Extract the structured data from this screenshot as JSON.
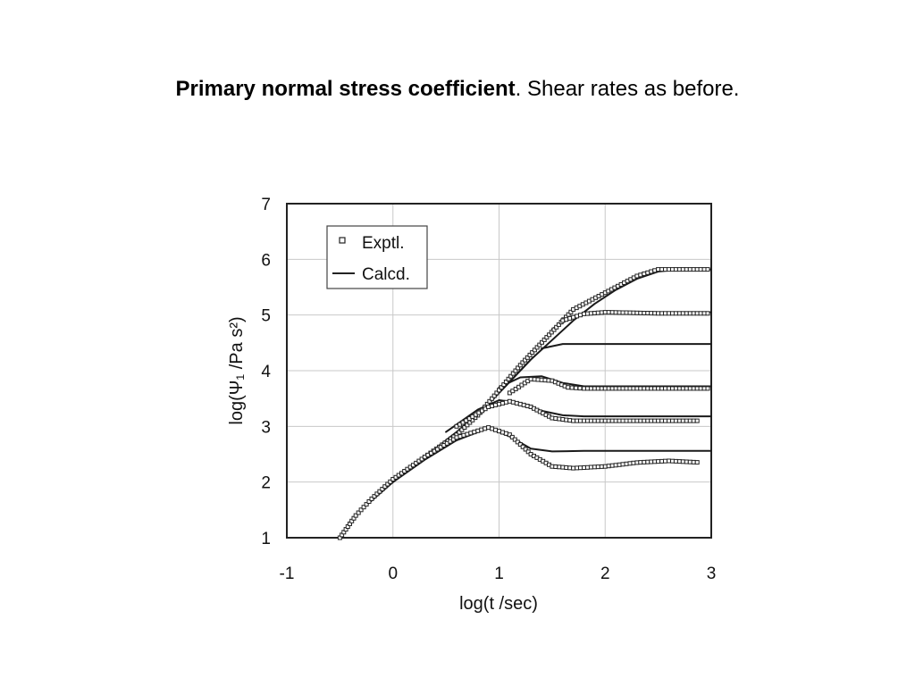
{
  "slide": {
    "title_bold": "Primary normal stress coefficient",
    "title_rest": ". Shear rates as before."
  },
  "chart_data": {
    "type": "scatter",
    "xlabel": "log(t /sec)",
    "ylabel": "log(Ψ₁ /Pa s²)",
    "xlim": [
      -1,
      3
    ],
    "ylim": [
      1,
      7
    ],
    "xticks": [
      -1,
      0,
      1,
      2,
      3
    ],
    "yticks": [
      1,
      2,
      3,
      4,
      5,
      6,
      7
    ],
    "grid": true,
    "legend_position": "top-left",
    "legend": [
      "Exptl.",
      "Calcd."
    ],
    "series": [
      {
        "name": "Exptl.",
        "curves": [
          [
            [
              -0.5,
              1.0
            ],
            [
              -0.35,
              1.4
            ],
            [
              -0.2,
              1.7
            ],
            [
              0,
              2.05
            ],
            [
              0.3,
              2.45
            ],
            [
              0.6,
              2.85
            ],
            [
              0.8,
              3.2
            ],
            [
              1.0,
              3.65
            ],
            [
              1.2,
              4.1
            ],
            [
              1.45,
              4.6
            ],
            [
              1.7,
              5.1
            ],
            [
              2.0,
              5.4
            ],
            [
              2.3,
              5.7
            ],
            [
              2.5,
              5.82
            ],
            [
              3.0,
              5.82
            ]
          ],
          [
            [
              1.6,
              4.9
            ],
            [
              1.8,
              5.02
            ],
            [
              2.0,
              5.05
            ],
            [
              2.5,
              5.03
            ],
            [
              3.0,
              5.03
            ]
          ],
          [
            [
              1.1,
              3.6
            ],
            [
              1.3,
              3.85
            ],
            [
              1.5,
              3.82
            ],
            [
              1.65,
              3.7
            ],
            [
              1.8,
              3.68
            ],
            [
              3.0,
              3.68
            ]
          ],
          [
            [
              0.6,
              3.0
            ],
            [
              0.9,
              3.35
            ],
            [
              1.1,
              3.45
            ],
            [
              1.3,
              3.35
            ],
            [
              1.5,
              3.15
            ],
            [
              1.7,
              3.1
            ],
            [
              2.9,
              3.1
            ]
          ],
          [
            [
              0.3,
              2.45
            ],
            [
              0.6,
              2.8
            ],
            [
              0.9,
              2.98
            ],
            [
              1.1,
              2.85
            ],
            [
              1.3,
              2.5
            ],
            [
              1.5,
              2.28
            ],
            [
              1.7,
              2.25
            ],
            [
              2.0,
              2.28
            ],
            [
              2.3,
              2.35
            ],
            [
              2.6,
              2.38
            ],
            [
              2.9,
              2.35
            ]
          ]
        ]
      },
      {
        "name": "Calcd.",
        "curves": [
          [
            [
              -0.5,
              1.0
            ],
            [
              -0.3,
              1.5
            ],
            [
              0,
              2.0
            ],
            [
              0.3,
              2.45
            ],
            [
              0.6,
              2.9
            ],
            [
              0.9,
              3.4
            ],
            [
              1.1,
              3.8
            ],
            [
              1.3,
              4.2
            ],
            [
              1.5,
              4.55
            ],
            [
              1.7,
              4.9
            ],
            [
              1.9,
              5.2
            ],
            [
              2.1,
              5.45
            ],
            [
              2.3,
              5.65
            ],
            [
              2.5,
              5.78
            ],
            [
              2.7,
              5.82
            ],
            [
              3.0,
              5.82
            ]
          ],
          [
            [
              1.5,
              4.75
            ],
            [
              1.7,
              4.98
            ],
            [
              1.9,
              5.05
            ],
            [
              2.2,
              5.05
            ],
            [
              3.0,
              5.05
            ]
          ],
          [
            [
              1.4,
              4.4
            ],
            [
              1.6,
              4.48
            ],
            [
              2.0,
              4.48
            ],
            [
              3.0,
              4.48
            ]
          ],
          [
            [
              1.0,
              3.7
            ],
            [
              1.2,
              3.88
            ],
            [
              1.4,
              3.9
            ],
            [
              1.6,
              3.78
            ],
            [
              1.8,
              3.72
            ],
            [
              3.0,
              3.72
            ]
          ],
          [
            [
              0.5,
              2.9
            ],
            [
              0.8,
              3.3
            ],
            [
              1.0,
              3.47
            ],
            [
              1.2,
              3.42
            ],
            [
              1.4,
              3.28
            ],
            [
              1.6,
              3.2
            ],
            [
              1.8,
              3.18
            ],
            [
              3.0,
              3.18
            ]
          ],
          [
            [
              -0.2,
              1.7
            ],
            [
              0,
              2.0
            ],
            [
              0.3,
              2.4
            ],
            [
              0.6,
              2.75
            ],
            [
              0.9,
              2.97
            ],
            [
              1.1,
              2.82
            ],
            [
              1.3,
              2.6
            ],
            [
              1.5,
              2.55
            ],
            [
              1.8,
              2.56
            ],
            [
              3.0,
              2.56
            ]
          ]
        ]
      }
    ]
  }
}
